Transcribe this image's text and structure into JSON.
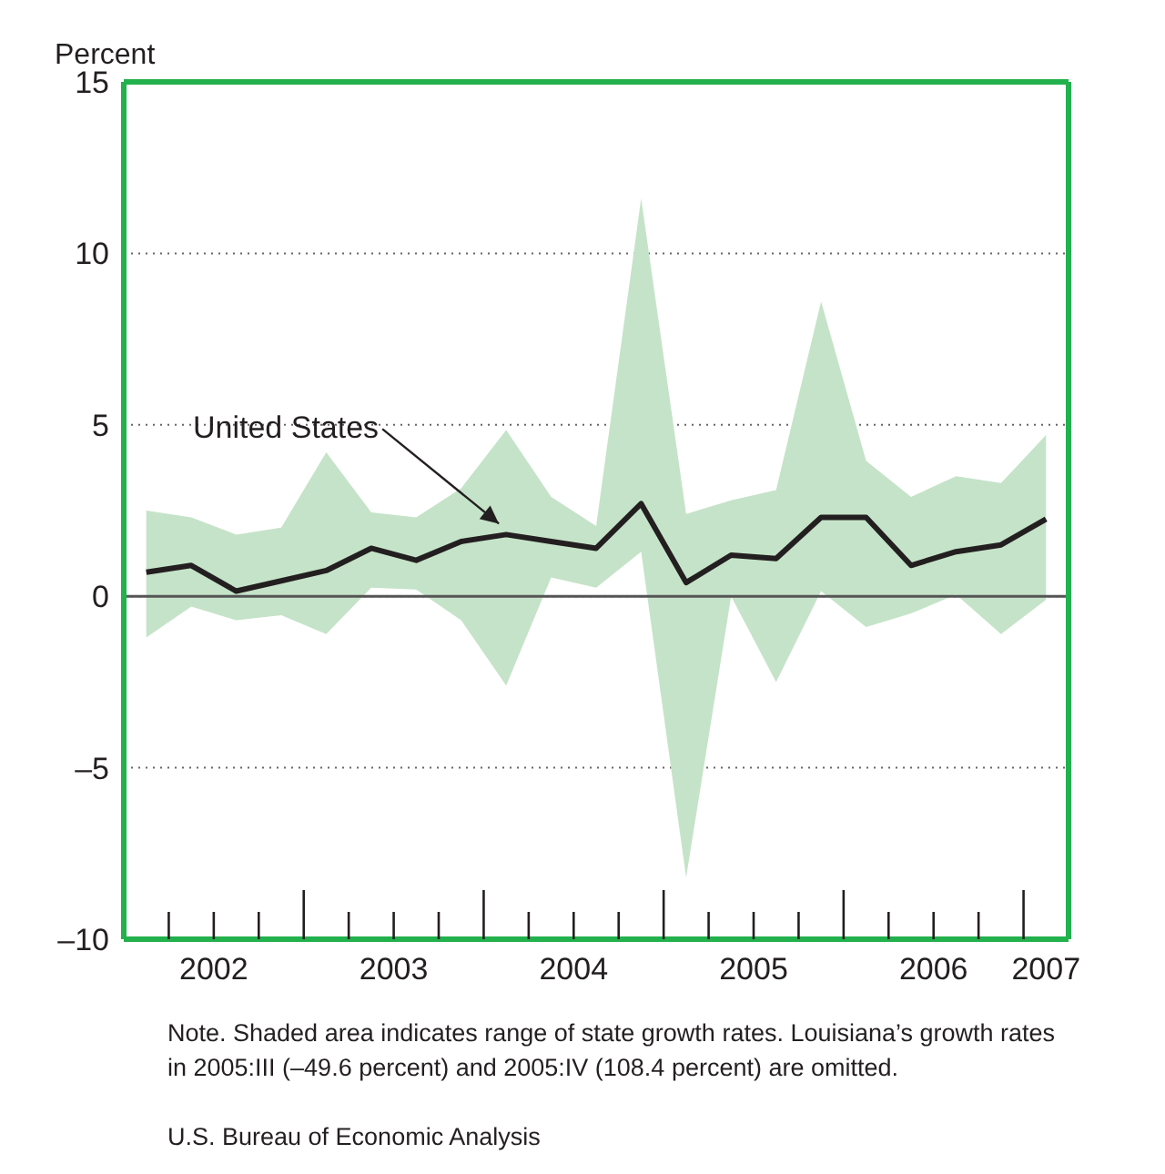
{
  "chart_data": {
    "type": "line",
    "ylabel": "Percent",
    "x": [
      2002.125,
      2002.375,
      2002.625,
      2002.875,
      2003.125,
      2003.375,
      2003.625,
      2003.875,
      2004.125,
      2004.375,
      2004.625,
      2004.875,
      2005.125,
      2005.375,
      2005.625,
      2005.875,
      2006.125,
      2006.375,
      2006.625,
      2006.875,
      2007.125
    ],
    "series": [
      {
        "name": "United States",
        "color": "#231f20",
        "values": [
          0.7,
          0.9,
          0.15,
          0.45,
          0.75,
          1.4,
          1.05,
          1.6,
          1.8,
          1.6,
          1.4,
          2.7,
          0.4,
          1.2,
          1.1,
          2.3,
          2.3,
          0.9,
          1.3,
          1.5,
          2.25
        ],
        "lower": [
          -1.2,
          -0.3,
          -0.7,
          -0.55,
          -1.1,
          0.25,
          0.2,
          -0.7,
          -2.6,
          0.55,
          0.25,
          1.3,
          -8.2,
          0,
          -2.5,
          0.15,
          -0.9,
          -0.5,
          0.05,
          -1.1,
          -0.1
        ],
        "upper": [
          2.5,
          2.3,
          1.8,
          2,
          4.2,
          2.45,
          2.3,
          3.15,
          4.85,
          2.9,
          2.05,
          11.6,
          2.4,
          2.8,
          3.1,
          8.6,
          3.95,
          2.9,
          3.5,
          3.3,
          4.7
        ]
      }
    ],
    "xlim": [
      2002,
      2007.25
    ],
    "xticks": [
      {
        "value": 2002.25,
        "label": null
      },
      {
        "value": 2002.5,
        "label": "2002"
      },
      {
        "value": 2002.75,
        "label": null
      },
      {
        "value": 2003,
        "label": null
      },
      {
        "value": 2003.25,
        "label": null
      },
      {
        "value": 2003.5,
        "label": "2003"
      },
      {
        "value": 2003.75,
        "label": null
      },
      {
        "value": 2004,
        "label": null
      },
      {
        "value": 2004.25,
        "label": null
      },
      {
        "value": 2004.5,
        "label": "2004"
      },
      {
        "value": 2004.75,
        "label": null
      },
      {
        "value": 2005,
        "label": null
      },
      {
        "value": 2005.25,
        "label": null
      },
      {
        "value": 2005.5,
        "label": "2005"
      },
      {
        "value": 2005.75,
        "label": null
      },
      {
        "value": 2006,
        "label": null
      },
      {
        "value": 2006.25,
        "label": null
      },
      {
        "value": 2006.5,
        "label": "2006"
      },
      {
        "value": 2006.75,
        "label": null
      },
      {
        "value": 2007,
        "label": null
      },
      {
        "value": 2007.125,
        "label": "2007"
      }
    ],
    "ylim": [
      -10,
      15
    ],
    "yticks": [
      {
        "value": -10,
        "label": "–10"
      },
      {
        "value": -5,
        "label": "–5"
      },
      0,
      5,
      10,
      15
    ],
    "grid": "y",
    "line_style": "solid",
    "marker": "none",
    "ref_lines": [
      {
        "axis": "y",
        "value": 0,
        "color": "#555555"
      }
    ],
    "annotations": [
      "Note. Shaded area indicates range of state growth rates. Louisiana’s growth rates in 2005:III (–49.6 percent) and 2005:IV (108.4 percent) are omitted.",
      "U.S. Bureau of Economic Analysis"
    ]
  }
}
